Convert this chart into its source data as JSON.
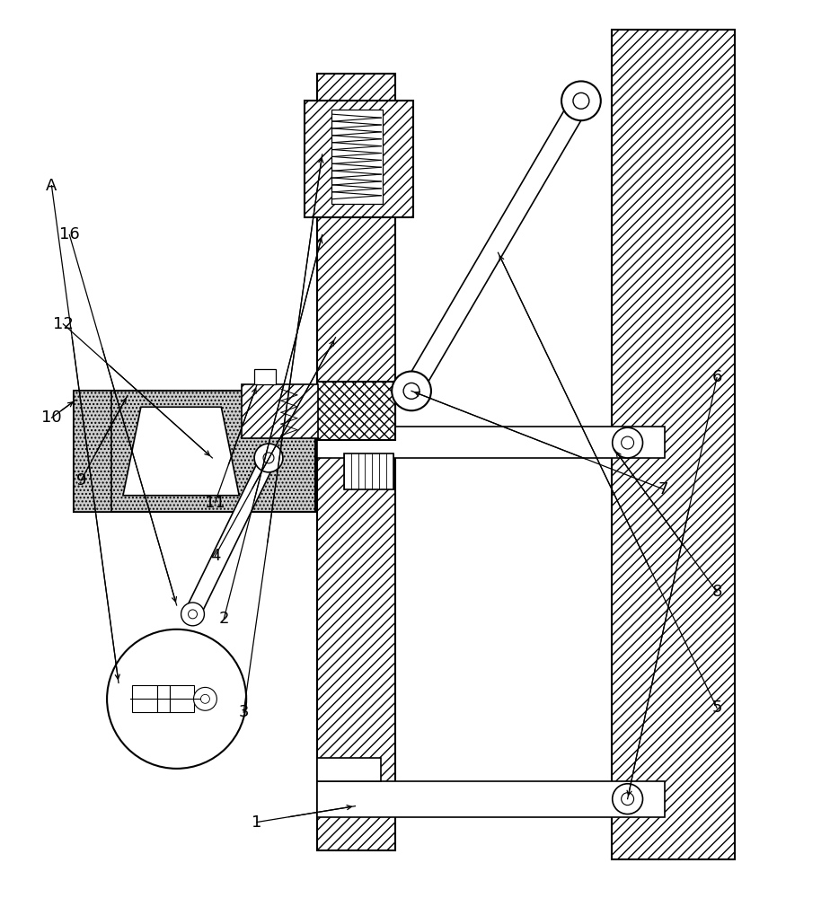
{
  "fig_width": 9.34,
  "fig_height": 10.0,
  "bg_color": "#ffffff",
  "line_color": "#000000"
}
